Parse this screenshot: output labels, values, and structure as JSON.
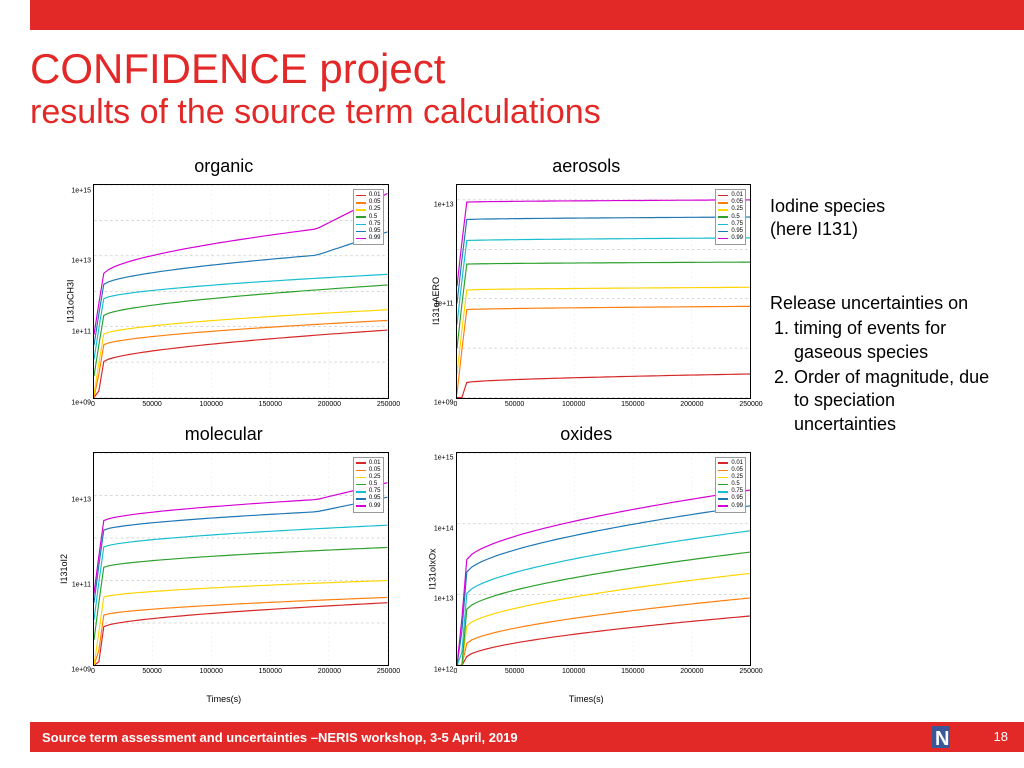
{
  "header": {
    "accent_color": "#e32828"
  },
  "title": {
    "main": "CONFIDENCE project",
    "sub": "results of the source term calculations"
  },
  "right": {
    "note1_l1": "Iodine species",
    "note1_l2": "(here I131)",
    "note2_heading": "Release uncertainties on",
    "bullets": [
      "timing of events for gaseous species",
      "Order of magnitude, due to speciation uncertainties"
    ]
  },
  "footer": {
    "text": "Source term assessment and uncertainties –NERIS workshop, 3-5 April, 2019",
    "page": "18",
    "logo": "IRSN"
  },
  "legend_quantiles": [
    "0.01",
    "0.05",
    "0.25",
    "0.5",
    "0.75",
    "0.95",
    "0.99"
  ],
  "series_colors": [
    "#d62728",
    "#ff7f0e",
    "#ffd500",
    "#2ca02c",
    "#17becf",
    "#1f77b4",
    "#d500d5"
  ],
  "x": {
    "min": 0,
    "max": 250000,
    "ticks": [
      0,
      50000,
      100000,
      150000,
      200000,
      250000
    ],
    "label": "Times(s)"
  },
  "charts": [
    {
      "title": "organic",
      "ylabel": "I131oCH3I",
      "ylog_min": 1000000000.0,
      "ylog_max": 1000000000000000.0,
      "yticks": [
        "1e+09",
        "1e+11",
        "1e+13",
        "1e+15"
      ],
      "series": [
        {
          "c": 0,
          "y0": 10000000000.0,
          "y1": 80000000000.0,
          "step": 0
        },
        {
          "c": 1,
          "y0": 30000000000.0,
          "y1": 150000000000.0,
          "step": 0
        },
        {
          "c": 2,
          "y0": 60000000000.0,
          "y1": 300000000000.0,
          "step": 0
        },
        {
          "c": 3,
          "y0": 200000000000.0,
          "y1": 1500000000000.0,
          "step": 0
        },
        {
          "c": 4,
          "y0": 600000000000.0,
          "y1": 3000000000000.0,
          "step": 0
        },
        {
          "c": 5,
          "y0": 1500000000000.0,
          "y1": 15000000000000.0,
          "step": 1
        },
        {
          "c": 6,
          "y0": 3000000000000.0,
          "y1": 100000000000000.0,
          "step": 1
        }
      ]
    },
    {
      "title": "aerosols",
      "ylabel": "I131oAERO",
      "ylog_min": 1000000000.0,
      "ylog_max": 20000000000000.0,
      "yticks": [
        "1e+09",
        "1e+11",
        "1e+13"
      ],
      "series": [
        {
          "c": 0,
          "y0": 2000000000.0,
          "y1": 3000000000.0,
          "step": 0
        },
        {
          "c": 1,
          "y0": 60000000000.0,
          "y1": 70000000000.0,
          "step": 0
        },
        {
          "c": 2,
          "y0": 150000000000.0,
          "y1": 170000000000.0,
          "step": 0
        },
        {
          "c": 3,
          "y0": 500000000000.0,
          "y1": 550000000000.0,
          "step": 0
        },
        {
          "c": 4,
          "y0": 1500000000000.0,
          "y1": 1700000000000.0,
          "step": 0
        },
        {
          "c": 5,
          "y0": 4000000000000.0,
          "y1": 4500000000000.0,
          "step": 0
        },
        {
          "c": 6,
          "y0": 9000000000000.0,
          "y1": 10000000000000.0,
          "step": 0
        }
      ]
    },
    {
      "title": "molecular",
      "ylabel": "I131oI2",
      "ylog_min": 1000000000.0,
      "ylog_max": 100000000000000.0,
      "yticks": [
        "1e+09",
        "1e+11",
        "1e+13"
      ],
      "series": [
        {
          "c": 0,
          "y0": 8000000000.0,
          "y1": 30000000000.0,
          "step": 0
        },
        {
          "c": 1,
          "y0": 15000000000.0,
          "y1": 40000000000.0,
          "step": 0
        },
        {
          "c": 2,
          "y0": 40000000000.0,
          "y1": 100000000000.0,
          "step": 0
        },
        {
          "c": 3,
          "y0": 200000000000.0,
          "y1": 600000000000.0,
          "step": 0
        },
        {
          "c": 4,
          "y0": 600000000000.0,
          "y1": 2000000000000.0,
          "step": 0
        },
        {
          "c": 5,
          "y0": 1500000000000.0,
          "y1": 5000000000000.0,
          "step": 1
        },
        {
          "c": 6,
          "y0": 2500000000000.0,
          "y1": 10000000000000.0,
          "step": 1
        }
      ]
    },
    {
      "title": "oxides",
      "ylabel": "I131oIxOx",
      "ylog_min": 1000000000000.0,
      "ylog_max": 1000000000000000.0,
      "yticks": [
        "1e+12",
        "1e+13",
        "1e+14",
        "1e+15"
      ],
      "series": [
        {
          "c": 0,
          "y0": 1300000000000.0,
          "y1": 5000000000000.0,
          "step": 0
        },
        {
          "c": 1,
          "y0": 2000000000000.0,
          "y1": 9000000000000.0,
          "step": 0
        },
        {
          "c": 2,
          "y0": 3500000000000.0,
          "y1": 20000000000000.0,
          "step": 0
        },
        {
          "c": 3,
          "y0": 6000000000000.0,
          "y1": 40000000000000.0,
          "step": 0
        },
        {
          "c": 4,
          "y0": 10000000000000.0,
          "y1": 80000000000000.0,
          "step": 0
        },
        {
          "c": 5,
          "y0": 20000000000000.0,
          "y1": 180000000000000.0,
          "step": 0
        },
        {
          "c": 6,
          "y0": 30000000000000.0,
          "y1": 300000000000000.0,
          "step": 0
        }
      ]
    }
  ]
}
